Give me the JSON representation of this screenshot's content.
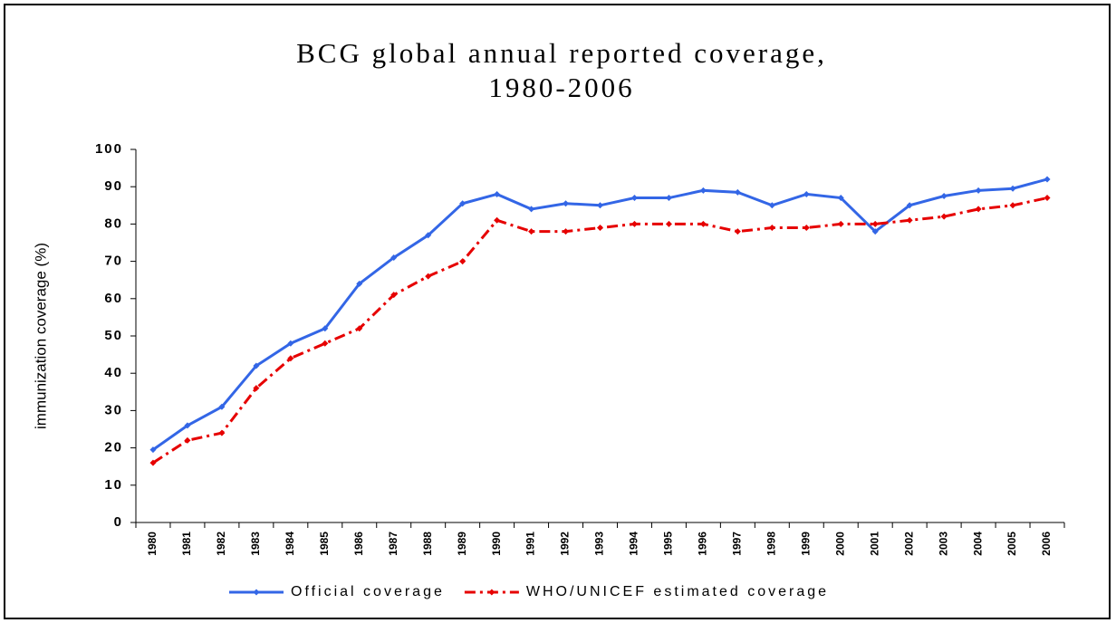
{
  "chart_data": {
    "type": "line",
    "title": "BCG global annual reported coverage, 1980-2006",
    "y_label": "immunization coverage (%)",
    "categories": [
      "1980",
      "1981",
      "1982",
      "1983",
      "1984",
      "1985",
      "1986",
      "1987",
      "1988",
      "1989",
      "1990",
      "1991",
      "1992",
      "1993",
      "1994",
      "1995",
      "1996",
      "1997",
      "1998",
      "1999",
      "2000",
      "2001",
      "2002",
      "2003",
      "2004",
      "2005",
      "2006"
    ],
    "series": [
      {
        "name": "Official coverage",
        "color": "#3366e6",
        "values": [
          19.5,
          26,
          31,
          42,
          48,
          52,
          64,
          71,
          77,
          85.5,
          88,
          84,
          85.5,
          85,
          87,
          87,
          89,
          88.5,
          85,
          88,
          87,
          78,
          85,
          87.5,
          89,
          89.5,
          92
        ]
      },
      {
        "name": "WHO/UNICEF estimated coverage",
        "color": "#e60000",
        "values": [
          16,
          22,
          24,
          36,
          44,
          48,
          52,
          61,
          66,
          70,
          81,
          78,
          78,
          79,
          80,
          80,
          80,
          78,
          79,
          79,
          80,
          80,
          81,
          82,
          84,
          85,
          87
        ]
      }
    ],
    "ylim": [
      0,
      100
    ],
    "yticks": [
      0,
      10,
      20,
      30,
      40,
      50,
      60,
      70,
      80,
      90,
      100
    ],
    "legend": "bottom"
  }
}
